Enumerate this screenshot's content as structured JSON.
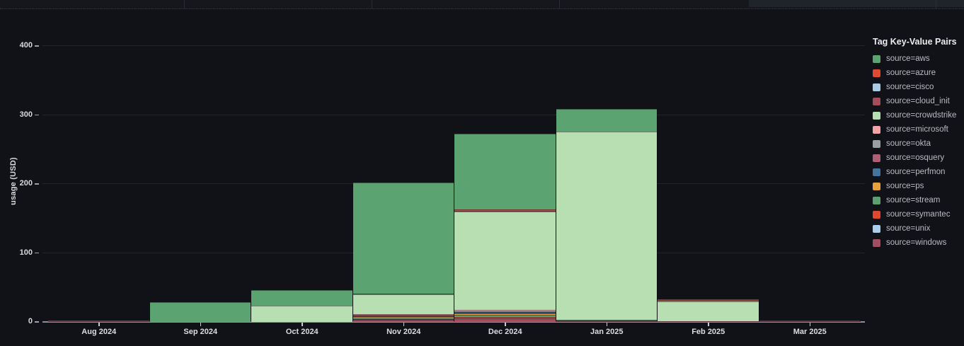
{
  "legend": {
    "title": "Tag Key-Value Pairs"
  },
  "chart_data": {
    "type": "bar",
    "stacked": true,
    "title": "",
    "xlabel": "",
    "ylabel": "usage (USD)",
    "ylim": [
      0,
      430
    ],
    "yticks": [
      0,
      100,
      200,
      300,
      400
    ],
    "grid": "horizontal",
    "legend_position": "right",
    "stack_order": "reverse-alphabetical (windows at bottom, aws on top)",
    "categories": [
      "Aug 2024",
      "Sep 2024",
      "Oct 2024",
      "Nov 2024",
      "Dec 2024",
      "Jan 2025",
      "Feb 2025",
      "Mar 2025"
    ],
    "series": [
      {
        "name": "source=aws",
        "color": "#5BA370",
        "values": [
          0.5,
          29,
          22,
          161,
          110,
          33,
          0.5,
          0
        ]
      },
      {
        "name": "source=azure",
        "color": "#DD4931",
        "values": [
          0,
          0,
          0,
          0,
          0.5,
          0,
          1.5,
          0
        ]
      },
      {
        "name": "source=cisco",
        "color": "#A9CBE8",
        "values": [
          0,
          0,
          0,
          0,
          0.3,
          0,
          0,
          0
        ]
      },
      {
        "name": "source=cloud_init",
        "color": "#A24C5C",
        "values": [
          0,
          0,
          0,
          0.5,
          0.5,
          0,
          0,
          0
        ]
      },
      {
        "name": "source=crowdstrike",
        "color": "#B7DFB1",
        "values": [
          0,
          0,
          24,
          29,
          142,
          272,
          29,
          0
        ]
      },
      {
        "name": "source=microsoft",
        "color": "#F2A3A8",
        "values": [
          0,
          0,
          0,
          0.5,
          2,
          0,
          0,
          0
        ]
      },
      {
        "name": "source=okta",
        "color": "#9B9EA3",
        "values": [
          0,
          0,
          0,
          0.3,
          1,
          0,
          0,
          0
        ]
      },
      {
        "name": "source=osquery",
        "color": "#AE5F76",
        "values": [
          0,
          0,
          0,
          0.3,
          1.5,
          0,
          0,
          0
        ]
      },
      {
        "name": "source=perfmon",
        "color": "#44749D",
        "values": [
          0,
          0,
          0,
          0.3,
          0.5,
          0,
          0,
          0
        ]
      },
      {
        "name": "source=ps",
        "color": "#E7A13E",
        "values": [
          0,
          0,
          0,
          1.5,
          1.5,
          0,
          0,
          0
        ]
      },
      {
        "name": "source=stream",
        "color": "#5E9F71",
        "values": [
          0,
          0,
          0,
          1.5,
          3,
          1,
          0,
          0
        ]
      },
      {
        "name": "source=symantec",
        "color": "#E0482E",
        "values": [
          0,
          0,
          0,
          1,
          1.5,
          0.5,
          0,
          0.5
        ]
      },
      {
        "name": "source=unix",
        "color": "#AACDEB",
        "values": [
          0,
          0,
          0,
          0,
          0.3,
          0,
          0,
          0
        ]
      },
      {
        "name": "source=windows",
        "color": "#A04E60",
        "values": [
          0.5,
          0,
          0,
          3,
          5,
          1.5,
          0.5,
          0.5
        ]
      }
    ]
  }
}
